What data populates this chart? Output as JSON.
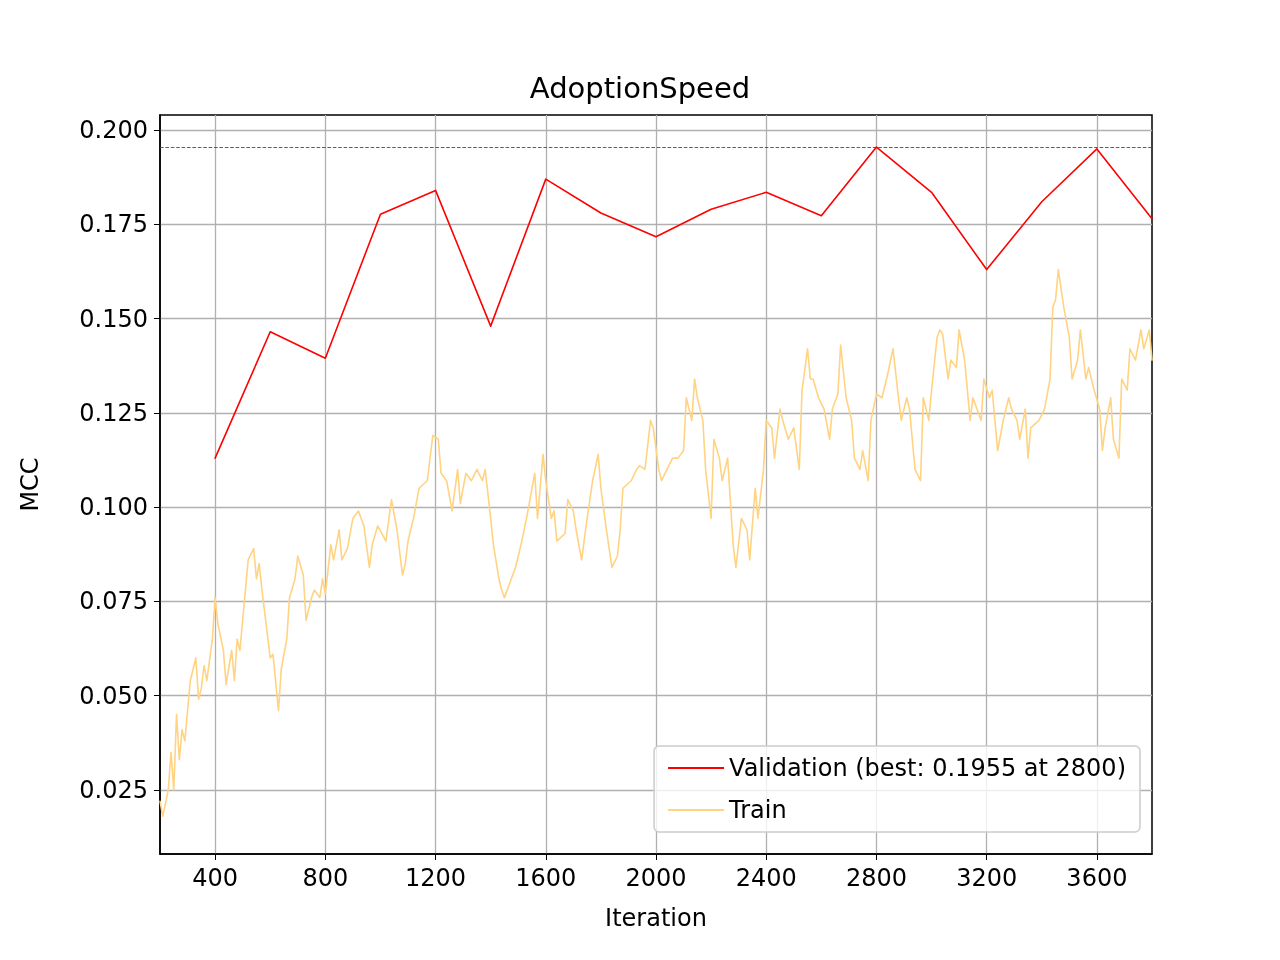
{
  "chart_data": {
    "type": "line",
    "title": "AdoptionSpeed",
    "xlabel": "Iteration",
    "ylabel": "MCC",
    "xlim": [
      200,
      3800
    ],
    "ylim": [
      0.008,
      0.204
    ],
    "xticks": [
      400,
      800,
      1200,
      1600,
      2000,
      2400,
      2800,
      3200,
      3600
    ],
    "yticks": [
      {
        "value": 0.025,
        "label": "0.025"
      },
      {
        "value": 0.05,
        "label": "0.050"
      },
      {
        "value": 0.075,
        "label": "0.075"
      },
      {
        "value": 0.1,
        "label": "0.100"
      },
      {
        "value": 0.125,
        "label": "0.125"
      },
      {
        "value": 0.15,
        "label": "0.150"
      },
      {
        "value": 0.175,
        "label": "0.175"
      },
      {
        "value": 0.2,
        "label": "0.200"
      }
    ],
    "grid": true,
    "legend": "bottom right",
    "marker": "none",
    "line_style": "solid",
    "ref_lines": [
      {
        "axis": "y",
        "value": 0.1955,
        "label": null,
        "color": "#ff0000",
        "line_style": "dashed"
      }
    ],
    "series": [
      {
        "name": "Validation (best: 0.1955 at 2800)",
        "color": "#ff0000",
        "x": [
          400,
          600,
          800,
          1000,
          1200,
          1400,
          1600,
          1800,
          2000,
          2200,
          2400,
          2600,
          2800,
          3000,
          3200,
          3400,
          3600,
          3800
        ],
        "values": [
          0.113,
          0.1465,
          0.1395,
          0.1777,
          0.184,
          0.148,
          0.187,
          0.178,
          0.1717,
          0.179,
          0.1835,
          0.1773,
          0.1955,
          0.1835,
          0.163,
          0.181,
          0.195,
          0.1765
        ]
      },
      {
        "name": "Train",
        "color": "#ffd382",
        "x": [
          200,
          210,
          230,
          240,
          250,
          260,
          270,
          280,
          290,
          310,
          330,
          340,
          350,
          360,
          370,
          390,
          400,
          410,
          430,
          440,
          460,
          470,
          480,
          490,
          510,
          520,
          540,
          550,
          560,
          570,
          590,
          600,
          610,
          630,
          640,
          660,
          670,
          690,
          700,
          720,
          730,
          750,
          760,
          780,
          790,
          800,
          820,
          830,
          850,
          860,
          880,
          900,
          920,
          940,
          960,
          970,
          990,
          1020,
          1040,
          1060,
          1080,
          1090,
          1100,
          1120,
          1140,
          1170,
          1190,
          1210,
          1220,
          1240,
          1260,
          1280,
          1290,
          1310,
          1330,
          1350,
          1370,
          1380,
          1400,
          1410,
          1430,
          1440,
          1450,
          1480,
          1490,
          1510,
          1530,
          1540,
          1560,
          1570,
          1590,
          1600,
          1620,
          1630,
          1640,
          1670,
          1680,
          1700,
          1710,
          1730,
          1750,
          1770,
          1790,
          1800,
          1820,
          1840,
          1860,
          1870,
          1880,
          1910,
          1930,
          1940,
          1960,
          1980,
          1990,
          2010,
          2020,
          2040,
          2060,
          2080,
          2100,
          2110,
          2130,
          2140,
          2150,
          2170,
          2180,
          2200,
          2210,
          2230,
          2240,
          2260,
          2280,
          2290,
          2310,
          2330,
          2340,
          2360,
          2370,
          2390,
          2400,
          2420,
          2430,
          2450,
          2460,
          2480,
          2500,
          2520,
          2530,
          2550,
          2560,
          2570,
          2590,
          2610,
          2630,
          2640,
          2660,
          2670,
          2690,
          2710,
          2720,
          2740,
          2750,
          2770,
          2780,
          2800,
          2820,
          2840,
          2860,
          2880,
          2890,
          2910,
          2920,
          2940,
          2960,
          2970,
          2990,
          3000,
          3020,
          3030,
          3040,
          3060,
          3070,
          3090,
          3100,
          3120,
          3140,
          3150,
          3180,
          3190,
          3210,
          3220,
          3240,
          3260,
          3280,
          3290,
          3310,
          3320,
          3340,
          3350,
          3360,
          3390,
          3410,
          3430,
          3440,
          3450,
          3460,
          3480,
          3500,
          3510,
          3530,
          3540,
          3560,
          3570,
          3590,
          3610,
          3620,
          3630,
          3650,
          3660,
          3680,
          3690,
          3710,
          3720,
          3740,
          3760,
          3770,
          3790,
          3800
        ],
        "values": [
          0.022,
          0.018,
          0.025,
          0.035,
          0.025,
          0.045,
          0.033,
          0.041,
          0.038,
          0.054,
          0.06,
          0.049,
          0.052,
          0.058,
          0.054,
          0.065,
          0.076,
          0.069,
          0.062,
          0.053,
          0.062,
          0.054,
          0.065,
          0.062,
          0.078,
          0.086,
          0.089,
          0.081,
          0.085,
          0.078,
          0.066,
          0.06,
          0.061,
          0.046,
          0.057,
          0.065,
          0.076,
          0.081,
          0.087,
          0.082,
          0.07,
          0.076,
          0.078,
          0.076,
          0.081,
          0.077,
          0.09,
          0.086,
          0.094,
          0.086,
          0.089,
          0.097,
          0.099,
          0.095,
          0.084,
          0.09,
          0.095,
          0.091,
          0.102,
          0.094,
          0.082,
          0.085,
          0.091,
          0.097,
          0.105,
          0.107,
          0.119,
          0.118,
          0.109,
          0.107,
          0.099,
          0.11,
          0.101,
          0.109,
          0.107,
          0.11,
          0.107,
          0.11,
          0.097,
          0.09,
          0.081,
          0.078,
          0.076,
          0.082,
          0.084,
          0.09,
          0.097,
          0.101,
          0.109,
          0.097,
          0.114,
          0.107,
          0.097,
          0.099,
          0.091,
          0.093,
          0.102,
          0.099,
          0.094,
          0.086,
          0.097,
          0.107,
          0.114,
          0.105,
          0.094,
          0.084,
          0.087,
          0.094,
          0.105,
          0.107,
          0.11,
          0.111,
          0.11,
          0.123,
          0.121,
          0.11,
          0.107,
          0.11,
          0.113,
          0.113,
          0.115,
          0.129,
          0.123,
          0.134,
          0.129,
          0.123,
          0.11,
          0.097,
          0.118,
          0.113,
          0.107,
          0.113,
          0.09,
          0.084,
          0.097,
          0.094,
          0.086,
          0.105,
          0.097,
          0.11,
          0.123,
          0.121,
          0.113,
          0.126,
          0.123,
          0.118,
          0.121,
          0.11,
          0.131,
          0.142,
          0.134,
          0.134,
          0.129,
          0.126,
          0.118,
          0.126,
          0.13,
          0.143,
          0.129,
          0.123,
          0.113,
          0.11,
          0.115,
          0.107,
          0.123,
          0.13,
          0.129,
          0.135,
          0.142,
          0.129,
          0.123,
          0.129,
          0.126,
          0.11,
          0.107,
          0.129,
          0.123,
          0.131,
          0.145,
          0.147,
          0.146,
          0.134,
          0.139,
          0.137,
          0.147,
          0.139,
          0.123,
          0.129,
          0.123,
          0.134,
          0.129,
          0.131,
          0.115,
          0.123,
          0.129,
          0.126,
          0.123,
          0.118,
          0.126,
          0.113,
          0.121,
          0.123,
          0.126,
          0.134,
          0.153,
          0.155,
          0.163,
          0.153,
          0.145,
          0.134,
          0.139,
          0.147,
          0.134,
          0.137,
          0.131,
          0.126,
          0.115,
          0.121,
          0.129,
          0.118,
          0.113,
          0.134,
          0.131,
          0.142,
          0.139,
          0.147,
          0.142,
          0.147,
          0.139
        ]
      }
    ]
  }
}
